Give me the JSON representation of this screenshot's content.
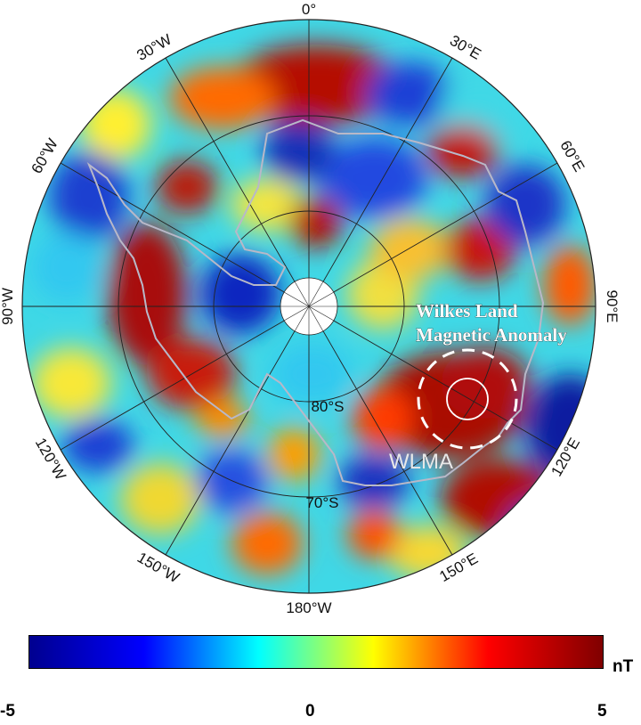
{
  "map": {
    "projection": "south-polar-stereographic",
    "longitude_labels": {
      "lon_0": "0°",
      "lon_30e": "30°E",
      "lon_60e": "60°E",
      "lon_90e": "90°E",
      "lon_120e": "120°E",
      "lon_150e": "150°E",
      "lon_180w": "180°W",
      "lon_150w": "150°W",
      "lon_120w": "120°W",
      "lon_90w": "90°W",
      "lon_60w": "60°W",
      "lon_30w": "30°W"
    },
    "latitude_labels": {
      "lat_80s": "80°S",
      "lat_70s": "70°S"
    },
    "feature_label": "WLMA",
    "annotation": {
      "line1": "Wilkes Land",
      "line2": "Magnetic Anomaly"
    }
  },
  "colorbar": {
    "min_label": "-5",
    "mid_label": "0",
    "max_label": "5",
    "unit": "nT",
    "colormap": "jet",
    "colors": [
      "#00008f",
      "#0000ff",
      "#00ffff",
      "#ffff00",
      "#ff0000",
      "#800000"
    ]
  }
}
